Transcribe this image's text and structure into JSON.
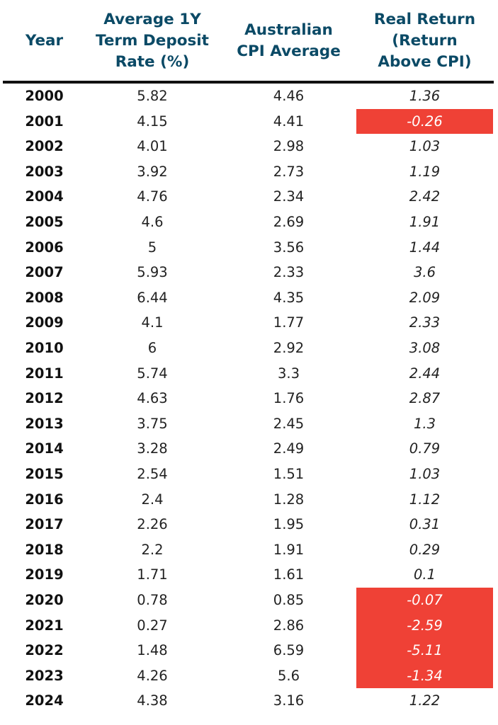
{
  "chart_data": {
    "type": "table",
    "columns": [
      "Year",
      "Average 1Y\nTerm Deposit\nRate (%)",
      "Australian\nCPI Average",
      "Real Return\n(Return\nAbove CPI)"
    ],
    "rows": [
      [
        "2000",
        "5.82",
        "4.46",
        "1.36"
      ],
      [
        "2001",
        "4.15",
        "4.41",
        "-0.26"
      ],
      [
        "2002",
        "4.01",
        "2.98",
        "1.03"
      ],
      [
        "2003",
        "3.92",
        "2.73",
        "1.19"
      ],
      [
        "2004",
        "4.76",
        "2.34",
        "2.42"
      ],
      [
        "2005",
        "4.6",
        "2.69",
        "1.91"
      ],
      [
        "2006",
        "5",
        "3.56",
        "1.44"
      ],
      [
        "2007",
        "5.93",
        "2.33",
        "3.6"
      ],
      [
        "2008",
        "6.44",
        "4.35",
        "2.09"
      ],
      [
        "2009",
        "4.1",
        "1.77",
        "2.33"
      ],
      [
        "2010",
        "6",
        "2.92",
        "3.08"
      ],
      [
        "2011",
        "5.74",
        "3.3",
        "2.44"
      ],
      [
        "2012",
        "4.63",
        "1.76",
        "2.87"
      ],
      [
        "2013",
        "3.75",
        "2.45",
        "1.3"
      ],
      [
        "2014",
        "3.28",
        "2.49",
        "0.79"
      ],
      [
        "2015",
        "2.54",
        "1.51",
        "1.03"
      ],
      [
        "2016",
        "2.4",
        "1.28",
        "1.12"
      ],
      [
        "2017",
        "2.26",
        "1.95",
        "0.31"
      ],
      [
        "2018",
        "2.2",
        "1.91",
        "0.29"
      ],
      [
        "2019",
        "1.71",
        "1.61",
        "0.1"
      ],
      [
        "2020",
        "0.78",
        "0.85",
        "-0.07"
      ],
      [
        "2021",
        "0.27",
        "2.86",
        "-2.59"
      ],
      [
        "2022",
        "1.48",
        "6.59",
        "-5.11"
      ],
      [
        "2023",
        "4.26",
        "5.6",
        "-1.34"
      ],
      [
        "2024",
        "4.38",
        "3.16",
        "1.22"
      ]
    ],
    "header_color": "#0b4a66",
    "negative_highlight_color": "#ef4136"
  }
}
